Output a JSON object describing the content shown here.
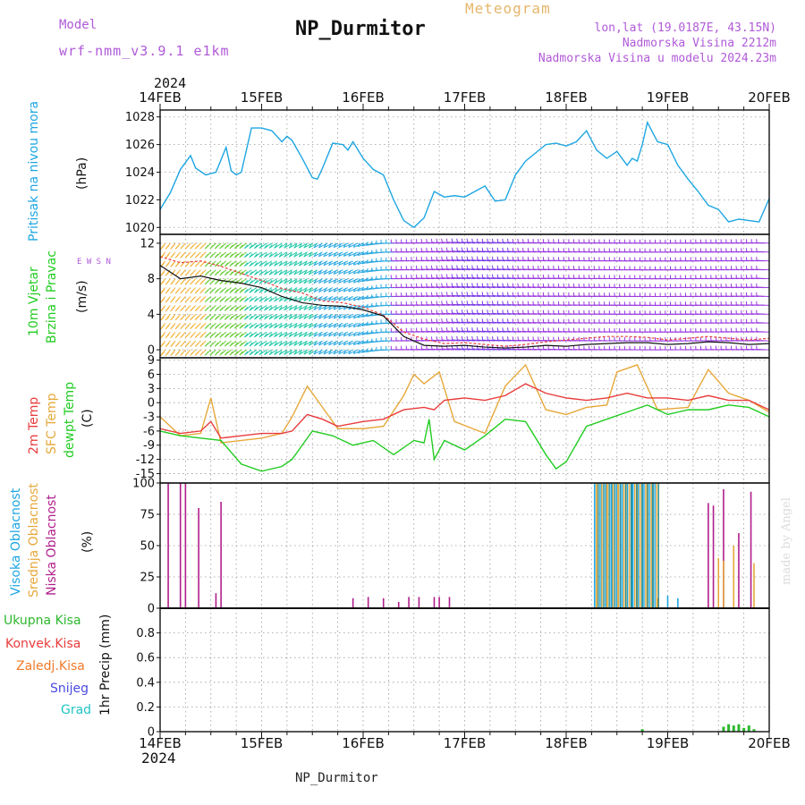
{
  "header": {
    "title": "NP_Durmitor",
    "model_label": "Model",
    "model_id": "wrf-nmm_v3.9.1  e1km",
    "meteogram_label": "Meteogram",
    "location": "lon,lat (19.0187E, 43.15N)",
    "elevation": "Nadmorska Visina 2212m",
    "model_elevation": "Nadmorska Visina u modelu 2024.23m",
    "year_top": "2024",
    "year_bottom": "2024",
    "footer_title": "NP_Durmitor",
    "credit": "made by Angel"
  },
  "time_axis": {
    "labels": [
      "14FEB",
      "15FEB",
      "16FEB",
      "17FEB",
      "18FEB",
      "19FEB",
      "20FEB"
    ]
  },
  "panel_labels": {
    "pressure": {
      "name": "Pritisak na nivou mora",
      "unit": "(hPa)"
    },
    "wind": {
      "name1": "10m Vjetar",
      "name2": "Brzina i Pravac",
      "unit": "(m/s)",
      "compass": "E  W   S  N"
    },
    "temperature": {
      "t2m": "2m Temp",
      "sfc": "SFC Temp",
      "dew": "dewpt Temp",
      "unit": "(C)"
    },
    "cloud": {
      "high": "Visoka Oblacnost",
      "mid": "Srednja Oblacnost",
      "low": "Niska Oblacnost",
      "unit": "(%)"
    },
    "precip": {
      "total": "Ukupna Kisa",
      "conv": "Konvek.Kisa",
      "frz": "Zaledj.Kisa",
      "snow": "Snijeg",
      "hail": "Grad",
      "unit": "1hr Precip (mm)"
    }
  },
  "colors": {
    "pressure": "#1ea6e2",
    "t2m": "#e83c3c",
    "sfc": "#e6a83a",
    "dew": "#22cc22",
    "cloud_high": "#1ea6e2",
    "cloud_mid": "#e6a83a",
    "cloud_low": "#b01e8c",
    "precip_total": "#2eb82e",
    "precip_conv": "#e83c3c",
    "precip_frz": "#f07a2a",
    "precip_snow": "#4a4ae0",
    "precip_hail": "#22c4c4",
    "wind_speed": "#111111",
    "wind_gust": "#e84040",
    "label_purple": "#b05ad8",
    "label_orange": "#e6b66a"
  },
  "chart_data": [
    {
      "type": "line",
      "name": "pressure",
      "x_unit": "days since 14FEB",
      "ylim": [
        1019.5,
        1028.5
      ],
      "yticks": [
        1020,
        1022,
        1024,
        1026,
        1028
      ],
      "series": [
        {
          "x": [
            0,
            0.1,
            0.2,
            0.3,
            0.35,
            0.45,
            0.55,
            0.65,
            0.7,
            0.75,
            0.8,
            0.9,
            1.0,
            1.1,
            1.2,
            1.25,
            1.3,
            1.4,
            1.5,
            1.55,
            1.6,
            1.7,
            1.8,
            1.85,
            1.9,
            2.0,
            2.1,
            2.2,
            2.3,
            2.4,
            2.5,
            2.6,
            2.7,
            2.8,
            2.9,
            3.0,
            3.1,
            3.2,
            3.3,
            3.4,
            3.5,
            3.6,
            3.7,
            3.8,
            3.9,
            4.0,
            4.1,
            4.2,
            4.3,
            4.4,
            4.5,
            4.6,
            4.65,
            4.7,
            4.75,
            4.8,
            4.9,
            5.0,
            5.1,
            5.2,
            5.3,
            5.4,
            5.5,
            5.6,
            5.7,
            5.8,
            5.9,
            6.0
          ],
          "y": [
            1021.3,
            1022.5,
            1024.2,
            1025.2,
            1024.3,
            1023.8,
            1024.0,
            1025.8,
            1024.1,
            1023.8,
            1024.0,
            1027.2,
            1027.2,
            1027.0,
            1026.2,
            1026.6,
            1026.3,
            1025.0,
            1023.6,
            1023.5,
            1024.3,
            1026.1,
            1026.0,
            1025.6,
            1026.2,
            1025.0,
            1024.2,
            1023.8,
            1022.0,
            1020.5,
            1020.0,
            1020.7,
            1022.6,
            1022.2,
            1022.3,
            1022.2,
            1022.6,
            1023.0,
            1021.9,
            1022.0,
            1023.8,
            1024.8,
            1025.4,
            1026.0,
            1026.1,
            1025.9,
            1026.2,
            1027.0,
            1025.6,
            1025.0,
            1025.5,
            1024.5,
            1025.0,
            1024.8,
            1026.0,
            1027.6,
            1026.2,
            1026.0,
            1024.5,
            1023.5,
            1022.6,
            1021.6,
            1021.3,
            1020.4,
            1020.6,
            1020.5,
            1020.4,
            1022.1
          ]
        }
      ]
    },
    {
      "type": "line",
      "name": "wind",
      "x_unit": "days since 14FEB",
      "ylim": [
        -0.9,
        13
      ],
      "yticks": [
        0,
        4,
        8,
        12
      ],
      "series": [
        {
          "name": "speed",
          "x": [
            0,
            0.2,
            0.4,
            0.6,
            0.8,
            1.0,
            1.2,
            1.4,
            1.6,
            1.8,
            2.0,
            2.2,
            2.4,
            2.6,
            2.8,
            3.0,
            3.2,
            3.4,
            3.6,
            3.8,
            4.0,
            4.2,
            4.4,
            4.6,
            4.8,
            5.0,
            5.2,
            5.4,
            5.6,
            5.8,
            6.0
          ],
          "y": [
            9.5,
            8.0,
            8.3,
            7.8,
            7.5,
            7.0,
            6.0,
            5.3,
            5.0,
            4.9,
            4.5,
            3.8,
            1.5,
            0.5,
            0.4,
            0.5,
            0.3,
            0.2,
            0.3,
            0.5,
            0.4,
            0.6,
            0.7,
            0.8,
            0.8,
            0.6,
            0.7,
            0.9,
            0.8,
            0.6,
            0.7
          ]
        },
        {
          "name": "gust",
          "x": [
            0,
            0.2,
            0.4,
            0.6,
            0.8,
            1.0,
            1.2,
            1.4,
            1.6,
            1.8,
            2.0,
            2.2,
            2.4,
            2.6,
            2.8,
            3.0,
            3.2,
            3.4,
            3.6,
            3.8,
            4.0,
            4.2,
            4.4,
            4.6,
            4.8,
            5.0,
            5.2,
            5.4,
            5.6,
            5.8,
            6.0
          ],
          "y": [
            10.5,
            9.8,
            10.0,
            9.4,
            8.6,
            7.8,
            6.9,
            6.4,
            5.5,
            5.3,
            4.8,
            3.9,
            2.0,
            1.2,
            0.7,
            0.8,
            0.6,
            0.4,
            0.6,
            0.9,
            1.1,
            1.3,
            1.5,
            1.5,
            1.4,
            1.1,
            1.3,
            1.5,
            1.3,
            1.1,
            1.3
          ]
        },
        {
          "name": "direction",
          "x": [
            0,
            1,
            2,
            2.3,
            3,
            4,
            5,
            6
          ],
          "y": [
            200,
            215,
            230,
            270,
            280,
            275,
            270,
            275
          ]
        }
      ]
    },
    {
      "type": "line",
      "name": "temperature",
      "x_unit": "days since 14FEB",
      "ylim": [
        -17,
        9.5
      ],
      "yticks": [
        -15,
        -12,
        -9,
        -6,
        -3,
        0,
        3,
        6,
        9
      ],
      "series": [
        {
          "name": "t2m",
          "x": [
            0,
            0.2,
            0.4,
            0.5,
            0.6,
            0.8,
            1.0,
            1.2,
            1.3,
            1.45,
            1.6,
            1.75,
            2.0,
            2.2,
            2.4,
            2.6,
            2.7,
            2.8,
            3.0,
            3.2,
            3.4,
            3.6,
            3.8,
            4.0,
            4.2,
            4.4,
            4.6,
            4.8,
            5.0,
            5.2,
            5.4,
            5.6,
            5.8,
            6.0
          ],
          "y": [
            -5.5,
            -6.5,
            -6.0,
            -4.0,
            -7.5,
            -7.0,
            -6.5,
            -6.5,
            -6.0,
            -2.5,
            -3.5,
            -5.0,
            -4.0,
            -3.5,
            -1.5,
            -1.0,
            -1.5,
            0.5,
            1.0,
            0.5,
            1.5,
            4.0,
            2.0,
            1.0,
            0.5,
            1.0,
            2.0,
            1.0,
            1.0,
            0.5,
            1.5,
            0.5,
            0.5,
            -1.5
          ]
        },
        {
          "name": "sfc",
          "x": [
            0,
            0.2,
            0.4,
            0.5,
            0.6,
            0.8,
            1.0,
            1.2,
            1.3,
            1.45,
            1.6,
            1.75,
            2.0,
            2.2,
            2.4,
            2.5,
            2.6,
            2.75,
            2.9,
            3.2,
            3.4,
            3.6,
            3.8,
            4.0,
            4.2,
            4.4,
            4.5,
            4.7,
            4.9,
            5.2,
            5.4,
            5.6,
            5.8,
            6.0
          ],
          "y": [
            -3.0,
            -7.0,
            -6.5,
            1.0,
            -8.5,
            -8.0,
            -7.5,
            -6.5,
            -3.0,
            3.5,
            -1.0,
            -5.5,
            -5.5,
            -5.0,
            1.5,
            6.0,
            4.0,
            6.5,
            -4.0,
            -6.5,
            3.5,
            8.0,
            -1.5,
            -2.5,
            -1.0,
            -0.5,
            6.5,
            8.0,
            -1.5,
            -1.0,
            7.0,
            2.0,
            0.5,
            -2.0
          ]
        },
        {
          "name": "dew",
          "x": [
            0,
            0.2,
            0.4,
            0.6,
            0.8,
            1.0,
            1.2,
            1.3,
            1.5,
            1.7,
            1.9,
            2.1,
            2.3,
            2.5,
            2.6,
            2.65,
            2.7,
            2.8,
            3.0,
            3.2,
            3.4,
            3.6,
            3.8,
            3.9,
            4.0,
            4.2,
            4.4,
            4.6,
            4.8,
            5.0,
            5.2,
            5.4,
            5.6,
            5.8,
            6.0
          ],
          "y": [
            -6.0,
            -7.0,
            -7.5,
            -8.0,
            -13.0,
            -14.5,
            -13.5,
            -12.0,
            -6.0,
            -7.0,
            -9.0,
            -8.0,
            -11.0,
            -8.0,
            -8.5,
            -3.5,
            -12.0,
            -8.0,
            -10.0,
            -7.0,
            -3.5,
            -4.0,
            -11.0,
            -14.0,
            -12.5,
            -5.0,
            -3.5,
            -2.0,
            -0.5,
            -2.5,
            -1.5,
            -1.5,
            -0.5,
            -1.0,
            -3.0
          ]
        }
      ]
    },
    {
      "type": "bar",
      "name": "cloud_cover",
      "x_unit": "days since 14FEB",
      "ylim": [
        0,
        100
      ],
      "yticks": [
        0,
        25,
        50,
        75,
        100
      ],
      "series": [
        {
          "name": "low",
          "x": [
            0.08,
            0.2,
            0.25,
            0.38,
            0.55,
            0.6,
            1.9,
            2.05,
            2.2,
            2.35,
            2.45,
            2.55,
            2.7,
            2.75,
            2.85,
            5.4,
            5.45,
            5.55,
            5.7,
            5.82
          ],
          "y": [
            100,
            100,
            100,
            80,
            12,
            85,
            8,
            9,
            8,
            5,
            9,
            9,
            9,
            9,
            9,
            84,
            82,
            95,
            60,
            93
          ]
        },
        {
          "name": "mid",
          "x": [
            4.3,
            4.4,
            4.5,
            4.6,
            4.7,
            4.8,
            4.9,
            5.5,
            5.55,
            5.65,
            5.85
          ],
          "y": [
            100,
            100,
            100,
            100,
            100,
            100,
            8,
            40,
            38,
            50,
            36
          ]
        },
        {
          "name": "high",
          "x": [
            4.28,
            4.35,
            4.45,
            4.55,
            4.65,
            4.75,
            4.85,
            5.0,
            5.1
          ],
          "y": [
            100,
            100,
            100,
            100,
            100,
            100,
            100,
            10,
            8
          ]
        }
      ]
    },
    {
      "type": "bar",
      "name": "precipitation",
      "x_unit": "days since 14FEB",
      "ylim": [
        0,
        1.0
      ],
      "yticks": [
        0,
        0.2,
        0.4,
        0.6,
        0.8
      ],
      "series": [
        {
          "name": "total",
          "x": [
            4.75,
            5.55,
            5.6,
            5.65,
            5.7,
            5.75,
            5.8,
            5.85
          ],
          "y": [
            0.02,
            0.04,
            0.06,
            0.05,
            0.06,
            0.03,
            0.05,
            0.02
          ]
        }
      ]
    }
  ]
}
